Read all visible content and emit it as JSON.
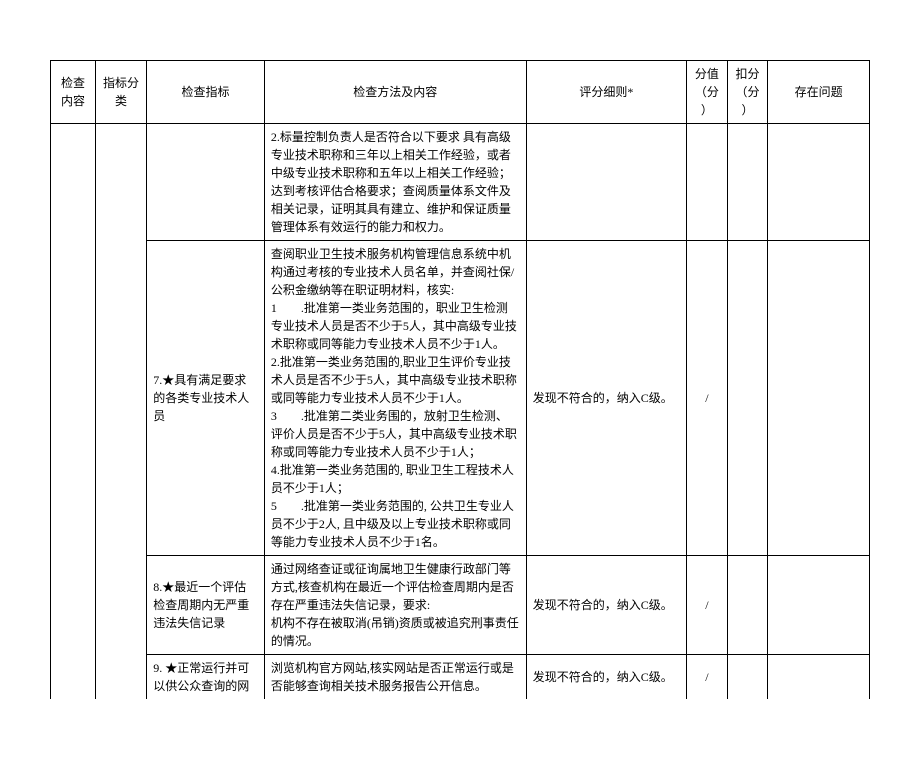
{
  "headers": {
    "check_content": "检查内容",
    "category": "指标分类",
    "index": "检查指标",
    "method": "检查方法及内容",
    "criteria": "评分细则*",
    "score": "分值（分）",
    "deduct": "扣分（分）",
    "problem": "存在问题"
  },
  "rows": [
    {
      "index": "",
      "method": "2.标量控制负责人是否符合以下要求 具有高级专业技术职称和三年以上相关工作经验，或者中级专业技术职称和五年以上相关工作经验；达到考核评估合格要求；查阅质量体系文件及相关记录，证明其具有建立、维护和保证质量管理体系有效运行的能力和权力。",
      "criteria": "",
      "score": "",
      "deduct": "",
      "problem": ""
    },
    {
      "index": "7.★具有满足要求的各类专业技术人员",
      "method": "查阅职业卫生技术服务机构管理信息系统中机构通过考核的专业技术人员名单，并查阅社保/公积金缴纳等在职证明材料，核实:\n1　　.批准第一类业务范围的，职业卫生检测专业技术人员是否不少于5人，其中高级专业技术职称或同等能力专业技术人员不少于1人。\n2.批准第一类业务范围的,职业卫生评价专业技术人员是否不少于5人，其中高级专业技术职称或同等能力专业技术人员不少于1人。\n3　　.批准第二类业务围的，放射卫生检测、评价人员是否不少于5人，其中高级专业技术职称或同等能力专业技术人员不少于1人；\n4.批准第一类业务范围的, 职业卫生工程技术人员不少于1人；\n5　　.批准第一类业务范围的, 公共卫生专业人员不少于2人, 且中级及以上专业技术职称或同等能力专业技术人员不少于1名。",
      "criteria": "发现不符合的，纳入C级。",
      "score": "/",
      "deduct": "",
      "problem": ""
    },
    {
      "index": "8.★最近一个评估检查周期内无严重违法失信记录",
      "method": "通过网络查证或征询属地卫生健康行政部门等方式,核查机构在最近一个评估检查周期内是否存在严重违法失信记录，要求:\n机构不存在被取消(吊销)资质或被追究刑事责任的情况。",
      "criteria": "发现不符合的，纳入C级。",
      "score": "/",
      "deduct": "",
      "problem": ""
    },
    {
      "index": "9. ★正常运行并可以供公众查询的网",
      "method": "浏览机构官方网站,核实网站是否正常运行或是否能够查询相关技术服务报告公开信息。",
      "criteria": "发现不符合的，纳入C级。",
      "score": "/",
      "deduct": "",
      "problem": ""
    }
  ]
}
